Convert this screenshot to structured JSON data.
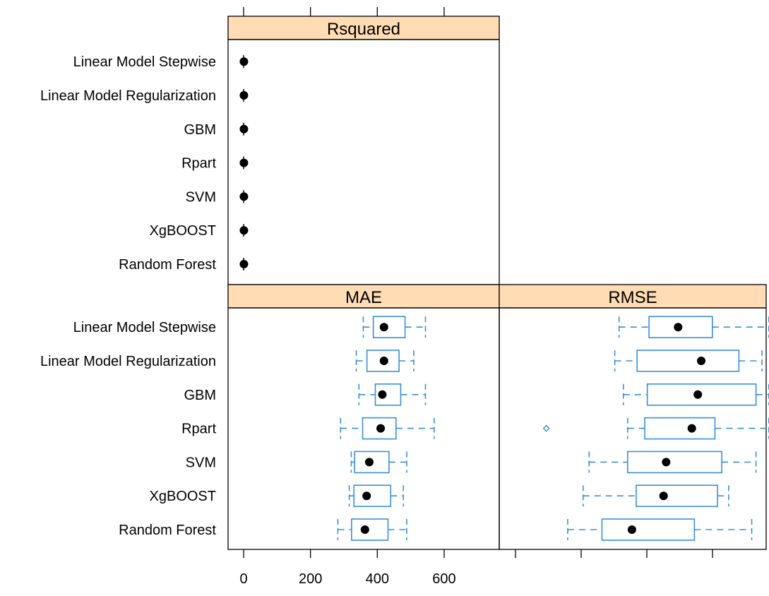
{
  "chart_data": {
    "type": "box",
    "categories": [
      "Random Forest",
      "XgBOOST",
      "SVM",
      "Rpart",
      "GBM",
      "Linear Model Regularization",
      "Linear Model Stepwise"
    ],
    "x_ticks_mae": [
      0,
      200,
      400,
      600
    ],
    "panels": [
      {
        "name": "Rsquared",
        "xlim": [
          -40,
          760
        ],
        "boxes": [
          {
            "category": "Random Forest",
            "min": 0.8,
            "q1": 0.85,
            "median": 0.88,
            "q3": 0.9,
            "max": 0.94
          },
          {
            "category": "XgBOOST",
            "min": 0.8,
            "q1": 0.85,
            "median": 0.88,
            "q3": 0.9,
            "max": 0.94
          },
          {
            "category": "SVM",
            "min": 0.8,
            "q1": 0.85,
            "median": 0.87,
            "q3": 0.9,
            "max": 0.94
          },
          {
            "category": "Rpart",
            "min": 0.75,
            "q1": 0.8,
            "median": 0.84,
            "q3": 0.87,
            "max": 0.92
          },
          {
            "category": "GBM",
            "min": 0.78,
            "q1": 0.84,
            "median": 0.87,
            "q3": 0.9,
            "max": 0.93
          },
          {
            "category": "Linear Model Regularization",
            "min": 0.78,
            "q1": 0.83,
            "median": 0.86,
            "q3": 0.89,
            "max": 0.92
          },
          {
            "category": "Linear Model Stepwise",
            "min": 0.78,
            "q1": 0.83,
            "median": 0.86,
            "q3": 0.89,
            "max": 0.92
          }
        ]
      },
      {
        "name": "MAE",
        "xlim": [
          -40,
          760
        ],
        "boxes": [
          {
            "category": "Random Forest",
            "min": 282,
            "q1": 323,
            "median": 363,
            "q3": 432,
            "max": 488
          },
          {
            "category": "XgBOOST",
            "min": 316,
            "q1": 330,
            "median": 368,
            "q3": 440,
            "max": 478
          },
          {
            "category": "SVM",
            "min": 322,
            "q1": 332,
            "median": 376,
            "q3": 435,
            "max": 488
          },
          {
            "category": "Rpart",
            "min": 290,
            "q1": 356,
            "median": 410,
            "q3": 456,
            "max": 570
          },
          {
            "category": "GBM",
            "min": 345,
            "q1": 394,
            "median": 415,
            "q3": 470,
            "max": 544
          },
          {
            "category": "Linear Model Regularization",
            "min": 337,
            "q1": 369,
            "median": 420,
            "q3": 465,
            "max": 509
          },
          {
            "category": "Linear Model Stepwise",
            "min": 358,
            "q1": 388,
            "median": 420,
            "q3": 483,
            "max": 544
          }
        ]
      },
      {
        "name": "RMSE",
        "boxes": [
          {
            "category": "Random Forest",
            "min": 620,
            "q1": 660,
            "median": 695,
            "q3": 768,
            "max": 835
          },
          {
            "category": "XgBOOST",
            "min": 638,
            "q1": 700,
            "median": 732,
            "q3": 795,
            "max": 808
          },
          {
            "category": "SVM",
            "min": 645,
            "q1": 690,
            "median": 735,
            "q3": 800,
            "max": 840
          },
          {
            "category": "Rpart",
            "min": 690,
            "q1": 710,
            "median": 765,
            "q3": 792,
            "max": 855,
            "outliers": [
              595
            ]
          },
          {
            "category": "GBM",
            "min": 685,
            "q1": 713,
            "median": 772,
            "q3": 840,
            "max": 855
          },
          {
            "category": "Linear Model Regularization",
            "min": 675,
            "q1": 701,
            "median": 776,
            "q3": 820,
            "max": 847
          },
          {
            "category": "Linear Model Stepwise",
            "min": 680,
            "q1": 715,
            "median": 749,
            "q3": 789,
            "max": 855
          }
        ]
      }
    ]
  }
}
